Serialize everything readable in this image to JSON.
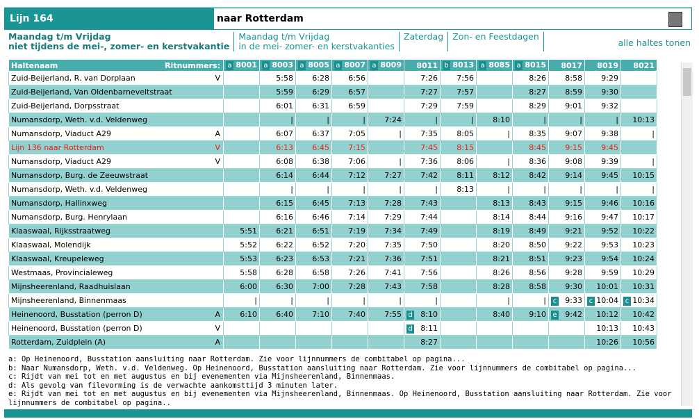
{
  "header": {
    "line": "Lijn 164",
    "direction": "naar Rotterdam"
  },
  "tabs": [
    {
      "lines": [
        "Maandag t/m Vrijdag",
        "niet tijdens de mei-, zomer- en kerstvakantie"
      ]
    },
    {
      "lines": [
        "Maandag t/m Vrijdag",
        "in de mei- zomer- en kerstvakanties"
      ]
    },
    {
      "lines": [
        "Zaterdag"
      ]
    },
    {
      "lines": [
        "Zon- en Feestdagen"
      ]
    }
  ],
  "show_all": "alle haltes tonen",
  "table": {
    "name_header": "Haltenaam",
    "trips_label": "Ritnummers:",
    "columns": [
      {
        "badge": "a",
        "number": "8001"
      },
      {
        "badge": "a",
        "number": "8003"
      },
      {
        "badge": "a",
        "number": "8005"
      },
      {
        "badge": "a",
        "number": "8007"
      },
      {
        "badge": "a",
        "number": "8009"
      },
      {
        "number": "8011"
      },
      {
        "badge": "b",
        "number": "8013"
      },
      {
        "badge": "a",
        "number": "8085"
      },
      {
        "badge": "a",
        "number": "8015"
      },
      {
        "number": "8017"
      },
      {
        "number": "8019"
      },
      {
        "number": "8021"
      }
    ],
    "rows": [
      {
        "name": "Zuid-Beijerland, R. van Dorplaan",
        "dir": "V",
        "cells": [
          null,
          "5:58",
          "6:28",
          "6:56",
          null,
          "7:26",
          "7:56",
          null,
          "8:26",
          "8:58",
          "9:29",
          null
        ]
      },
      {
        "name": "Zuid-Beijerland, Van Oldenbarneveltstraat",
        "cells": [
          null,
          "5:59",
          "6:29",
          "6:57",
          null,
          "7:27",
          "7:57",
          null,
          "8:27",
          "8:59",
          "9:30",
          null
        ]
      },
      {
        "name": "Zuid-Beijerland, Dorpsstraat",
        "cells": [
          null,
          "6:01",
          "6:31",
          "6:59",
          null,
          "7:29",
          "7:59",
          null,
          "8:29",
          "9:01",
          "9:32",
          null
        ]
      },
      {
        "name": "Numansdorp, Weth. v.d. Veldenweg",
        "cells": [
          null,
          "|",
          "|",
          "|",
          "7:24",
          "|",
          "|",
          "8:10",
          "|",
          "|",
          "|",
          "10:13"
        ]
      },
      {
        "name": "Numansdorp, Viaduct A29",
        "dir": "A",
        "cells": [
          null,
          "6:07",
          "6:37",
          "7:05",
          "|",
          "7:35",
          "8:05",
          "|",
          "8:35",
          "9:07",
          "9:38",
          "|"
        ]
      },
      {
        "name": "Lijn 136 naar Rotterdam",
        "dir": "V",
        "color": "#e2231a",
        "cells": [
          null,
          "6:13",
          "6:45",
          "7:15",
          null,
          "7:45",
          "8:15",
          null,
          "8:45",
          "9:15",
          "9:45",
          null
        ]
      },
      {
        "name": "Numansdorp, Viaduct A29",
        "dir": "V",
        "cells": [
          null,
          "6:08",
          "6:38",
          "7:06",
          "|",
          "7:36",
          "8:06",
          "|",
          "8:36",
          "9:08",
          "9:39",
          "|"
        ]
      },
      {
        "name": "Numansdorp, Burg. de Zeeuwstraat",
        "cells": [
          null,
          "6:14",
          "6:44",
          "7:12",
          "7:27",
          "7:42",
          "8:11",
          "8:12",
          "8:42",
          "9:14",
          "9:45",
          "10:15"
        ]
      },
      {
        "name": "Numansdorp, Weth. v.d. Veldenweg",
        "cells": [
          null,
          "|",
          "|",
          "|",
          "|",
          "|",
          "8:13",
          "|",
          "|",
          "|",
          "|",
          "|"
        ]
      },
      {
        "name": "Numansdorp, Hallinxweg",
        "cells": [
          null,
          "6:15",
          "6:45",
          "7:13",
          "7:28",
          "7:43",
          null,
          "8:13",
          "8:43",
          "9:15",
          "9:46",
          "10:16"
        ]
      },
      {
        "name": "Numansdorp, Burg. Henrylaan",
        "cells": [
          null,
          "6:16",
          "6:46",
          "7:14",
          "7:29",
          "7:44",
          null,
          "8:14",
          "8:44",
          "9:16",
          "9:47",
          "10:17"
        ]
      },
      {
        "name": "Klaaswaal, Rijksstraatweg",
        "cells": [
          "5:51",
          "6:21",
          "6:51",
          "7:19",
          "7:34",
          "7:49",
          null,
          "8:19",
          "8:49",
          "9:21",
          "9:52",
          "10:22"
        ]
      },
      {
        "name": "Klaaswaal, Molendijk",
        "cells": [
          "5:52",
          "6:22",
          "6:52",
          "7:20",
          "7:35",
          "7:50",
          null,
          "8:20",
          "8:50",
          "9:22",
          "9:53",
          "10:23"
        ]
      },
      {
        "name": "Klaaswaal, Kreupeleweg",
        "cells": [
          "5:53",
          "6:23",
          "6:53",
          "7:21",
          "7:36",
          "7:51",
          null,
          "8:21",
          "8:51",
          "9:23",
          "9:54",
          "10:24"
        ]
      },
      {
        "name": "Westmaas, Provincialeweg",
        "cells": [
          "5:58",
          "6:28",
          "6:58",
          "7:26",
          "7:41",
          "7:56",
          null,
          "8:26",
          "8:56",
          "9:28",
          "9:59",
          "10:29"
        ]
      },
      {
        "name": "Mijnsheerenland, Raadhuislaan",
        "cells": [
          "6:00",
          "6:30",
          "7:00",
          "7:28",
          "7:43",
          "7:58",
          null,
          "8:28",
          "8:58",
          "9:30",
          "10:01",
          "10:31"
        ]
      },
      {
        "name": "Mijnsheerenland, Binnenmaas",
        "cells": [
          "|",
          "|",
          "|",
          "|",
          "|",
          "|",
          null,
          "|",
          "|",
          {
            "note": "c",
            "time": "9:33"
          },
          {
            "note": "c",
            "time": "10:04"
          },
          {
            "note": "c",
            "time": "10:34"
          }
        ]
      },
      {
        "name": "Heinenoord, Busstation (perron D)",
        "dir": "A",
        "cells": [
          "6:10",
          "6:40",
          "7:10",
          "7:40",
          "7:55",
          {
            "note": "d",
            "time": "8:10"
          },
          null,
          "8:40",
          "9:10",
          {
            "note": "e",
            "time": "9:42"
          },
          "10:12",
          "10:42"
        ]
      },
      {
        "name": "Heinenoord, Busstation (perron D)",
        "dir": "V",
        "cells": [
          null,
          null,
          null,
          null,
          null,
          {
            "note": "d",
            "time": "8:11"
          },
          null,
          null,
          null,
          null,
          "10:13",
          "10:43"
        ]
      },
      {
        "name": "Rotterdam, Zuidplein (A)",
        "dir": "A",
        "cells": [
          null,
          null,
          null,
          null,
          null,
          "8:27",
          null,
          null,
          null,
          null,
          "10:26",
          "10:56"
        ]
      }
    ]
  },
  "footnotes": [
    "a: Op Heinenoord, Busstation aansluiting naar Rotterdam. Zie voor lijnnummers de combitabel op pagina...",
    "b: Naar Numansdorp, Weth. v.d. Veldenweg. Op Heinenoord, Busstation aansluiting naar Rotterdam. Zie voor lijnnummers de combitabel op pagina...",
    "c: Rijdt van mei tot en met augustus en bij evenementen via Mijnsheerenland, Binnenmaas.",
    "d: Als gevolg van filevorming is de verwachte aankomsttijd 3 minuten later.",
    "e: Rijdt van mei tot en met augustus en bij evenementen via Mijnsheerenland, Binnenmaas. Op Heinenoord, Busstation aansluiting naar Rotterdam. Zie voor lijnnummers de combitabel op pagina.."
  ]
}
